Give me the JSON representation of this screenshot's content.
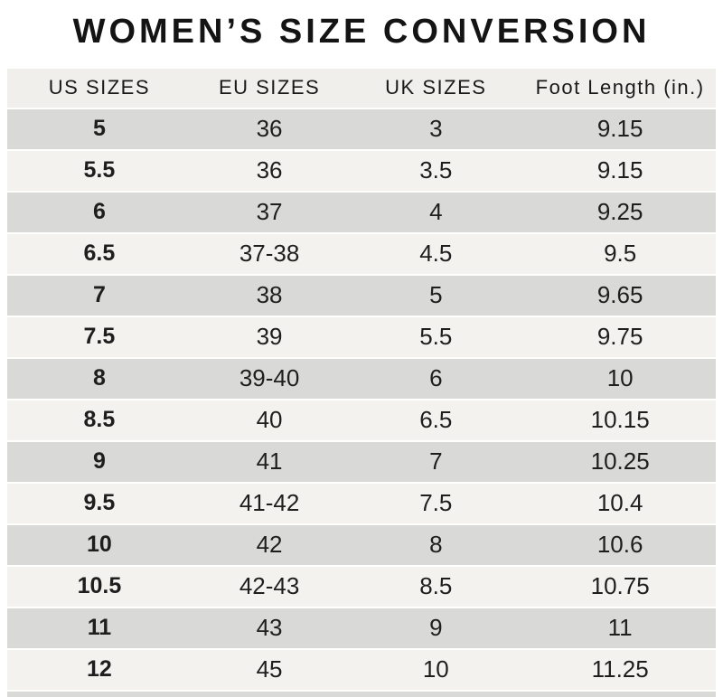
{
  "title": "WOMEN’S SIZE CONVERSION",
  "chart_data": {
    "type": "table",
    "title": "WOMEN’S SIZE CONVERSION",
    "columns": [
      "US SIZES",
      "EU SIZES",
      "UK SIZES",
      "Foot Length (in.)"
    ],
    "rows": [
      [
        "5",
        "36",
        "3",
        "9.15"
      ],
      [
        "5.5",
        "36",
        "3.5",
        "9.15"
      ],
      [
        "6",
        "37",
        "4",
        "9.25"
      ],
      [
        "6.5",
        "37-38",
        "4.5",
        "9.5"
      ],
      [
        "7",
        "38",
        "5",
        "9.65"
      ],
      [
        "7.5",
        "39",
        "5.5",
        "9.75"
      ],
      [
        "8",
        "39-40",
        "6",
        "10"
      ],
      [
        "8.5",
        "40",
        "6.5",
        "10.15"
      ],
      [
        "9",
        "41",
        "7",
        "10.25"
      ],
      [
        "9.5",
        "41-42",
        "7.5",
        "10.4"
      ],
      [
        "10",
        "42",
        "8",
        "10.6"
      ],
      [
        "10.5",
        "42-43",
        "8.5",
        "10.75"
      ],
      [
        "11",
        "43",
        "9",
        "11"
      ],
      [
        "12",
        "45",
        "10",
        "11.25"
      ]
    ],
    "layout": {
      "header_position": "top",
      "row_striping": "first-data-row-dark",
      "grid": "horizontal-white-separators"
    }
  },
  "colors": {
    "row_alt": "#d9d9d7",
    "row_base": "#f3f2ef",
    "header_bg": "#f0efec",
    "text": "#1e1e1e",
    "background": "#ffffff"
  }
}
